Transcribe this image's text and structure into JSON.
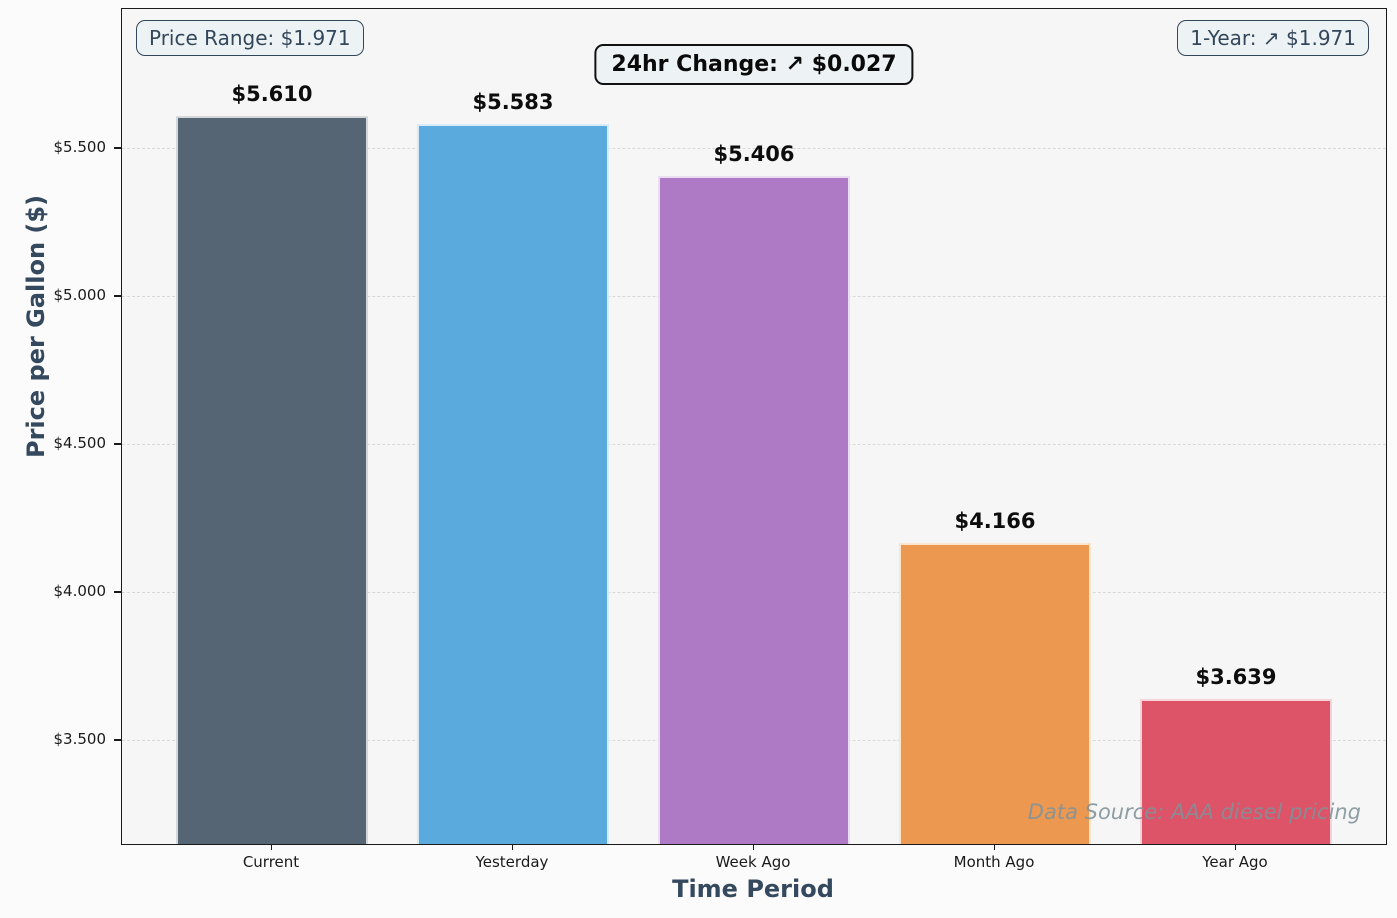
{
  "figure": {
    "background": "#fbfbfb",
    "plot_background": "#f6f6f6",
    "axis_title_color": "#34495e",
    "grid_color": "#d9d9d9",
    "spine_color": "#1a1a1a"
  },
  "badges": {
    "price_range": {
      "label": "Price Range: $1.971"
    },
    "change_24hr": {
      "label": "24hr Change: ↗ $0.027"
    },
    "one_year": {
      "label": "1-Year: ↗ $1.971"
    }
  },
  "watermark": "Data Source: AAA diesel pricing",
  "chart_data": {
    "type": "bar",
    "title": "",
    "xlabel": "Time Period",
    "ylabel": "Price per Gallon ($)",
    "categories": [
      "Current",
      "Yesterday",
      "Week Ago",
      "Month Ago",
      "Year Ago"
    ],
    "values": [
      5.61,
      5.583,
      5.406,
      4.166,
      3.639
    ],
    "bar_labels": [
      "$5.610",
      "$5.583",
      "$5.406",
      "$4.166",
      "$3.639"
    ],
    "bar_colors": [
      "#566573",
      "#5BAADE",
      "#AE7AC6",
      "#EC9850",
      "#DD5368"
    ],
    "ylim": [
      3.15,
      5.97
    ],
    "yticks": {
      "values": [
        3.5,
        4.0,
        4.5,
        5.0,
        5.5
      ],
      "labels": [
        "$3.500",
        "$4.000",
        "$4.500",
        "$5.000",
        "$5.500"
      ]
    },
    "grid": "horizontal-dashed",
    "legend": "none",
    "bar_width_fraction": 0.8
  }
}
